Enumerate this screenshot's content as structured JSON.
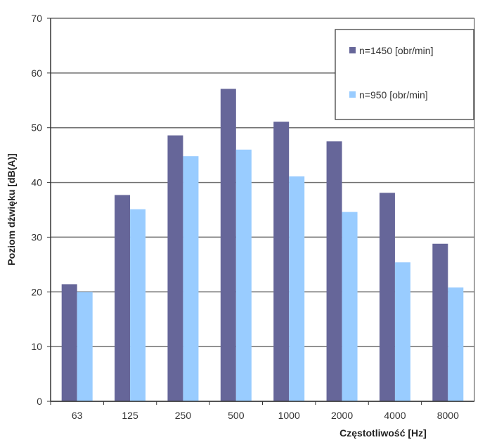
{
  "chart_data": {
    "type": "bar",
    "title": "",
    "xlabel": "Częstotliwość [Hz]",
    "ylabel": "Poziom dźwięku [dB(A)]",
    "ylim": [
      0,
      70
    ],
    "yticks": [
      0,
      10,
      20,
      30,
      40,
      50,
      60,
      70
    ],
    "grid": true,
    "legend_position": "top-right",
    "categories": [
      "63",
      "125",
      "250",
      "500",
      "1000",
      "2000",
      "4000",
      "8000"
    ],
    "series": [
      {
        "name": "n=1450 [obr/min]",
        "color": "#666699",
        "values": [
          21.4,
          37.7,
          48.6,
          57.1,
          51.1,
          47.5,
          38.1,
          28.8
        ]
      },
      {
        "name": "n=950 [obr/min]",
        "color": "#99ccff",
        "values": [
          20.0,
          35.1,
          44.8,
          46.0,
          41.1,
          34.6,
          25.4,
          20.8
        ]
      }
    ]
  }
}
